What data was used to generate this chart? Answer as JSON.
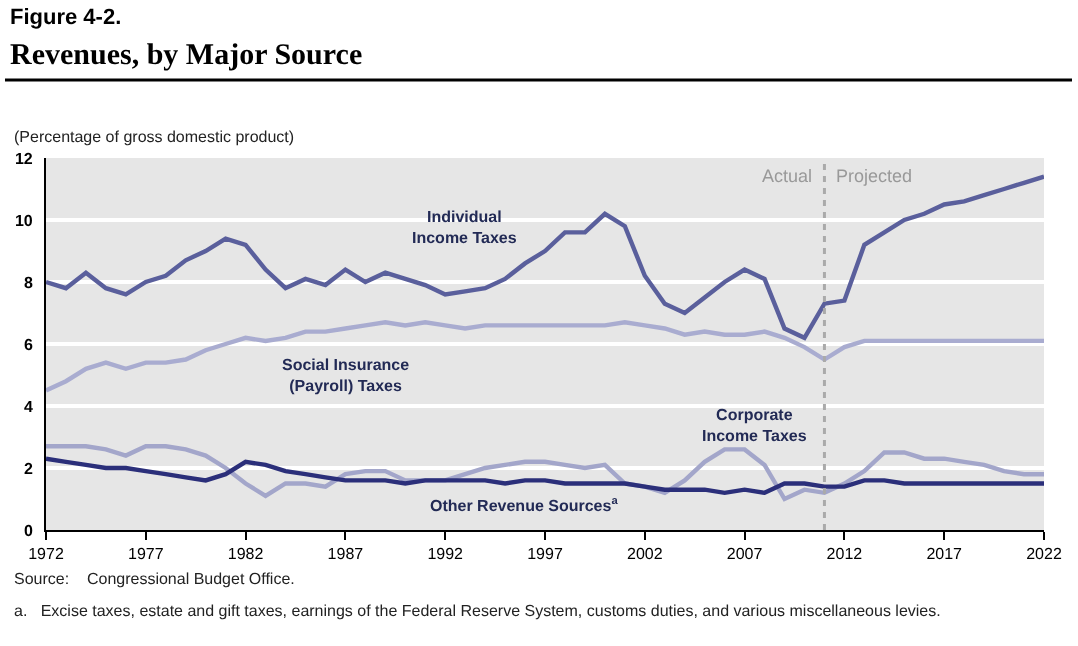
{
  "chart_data": {
    "type": "line",
    "title": "Revenues, by Major Source",
    "subtitle": "(Percentage of gross domestic product)",
    "x": [
      1972,
      1973,
      1974,
      1975,
      1976,
      1977,
      1978,
      1979,
      1980,
      1981,
      1982,
      1983,
      1984,
      1985,
      1986,
      1987,
      1988,
      1989,
      1990,
      1991,
      1992,
      1993,
      1994,
      1995,
      1996,
      1997,
      1998,
      1999,
      2000,
      2001,
      2002,
      2003,
      2004,
      2005,
      2006,
      2007,
      2008,
      2009,
      2010,
      2011,
      2012,
      2013,
      2014,
      2015,
      2016,
      2017,
      2018,
      2019,
      2020,
      2021,
      2022
    ],
    "series": [
      {
        "name": "Individual Income Taxes",
        "color": "#5a5f9c",
        "values": [
          8.0,
          7.8,
          8.3,
          7.8,
          7.6,
          8.0,
          8.2,
          8.7,
          9.0,
          9.4,
          9.2,
          8.4,
          7.8,
          8.1,
          7.9,
          8.4,
          8.0,
          8.3,
          8.1,
          7.9,
          7.6,
          7.7,
          7.8,
          8.1,
          8.6,
          9.0,
          9.6,
          9.6,
          10.2,
          9.8,
          8.2,
          7.3,
          7.0,
          7.5,
          8.0,
          8.4,
          8.1,
          6.5,
          6.2,
          7.3,
          7.4,
          9.2,
          9.6,
          10.0,
          10.2,
          10.5,
          10.6,
          10.8,
          11.0,
          11.2,
          11.4
        ]
      },
      {
        "name": "Social Insurance (Payroll) Taxes",
        "color": "#a9acd0",
        "values": [
          4.5,
          4.8,
          5.2,
          5.4,
          5.2,
          5.4,
          5.4,
          5.5,
          5.8,
          6.0,
          6.2,
          6.1,
          6.2,
          6.4,
          6.4,
          6.5,
          6.6,
          6.7,
          6.6,
          6.7,
          6.6,
          6.5,
          6.6,
          6.6,
          6.6,
          6.6,
          6.6,
          6.6,
          6.6,
          6.7,
          6.6,
          6.5,
          6.3,
          6.4,
          6.3,
          6.3,
          6.4,
          6.2,
          5.9,
          5.5,
          5.9,
          6.1,
          6.1,
          6.1,
          6.1,
          6.1,
          6.1,
          6.1,
          6.1,
          6.1,
          6.1
        ]
      },
      {
        "name": "Corporate Income Taxes",
        "color": "#a3a6ca",
        "values": [
          2.7,
          2.7,
          2.7,
          2.6,
          2.4,
          2.7,
          2.7,
          2.6,
          2.4,
          2.0,
          1.5,
          1.1,
          1.5,
          1.5,
          1.4,
          1.8,
          1.9,
          1.9,
          1.6,
          1.6,
          1.6,
          1.8,
          2.0,
          2.1,
          2.2,
          2.2,
          2.1,
          2.0,
          2.1,
          1.5,
          1.4,
          1.2,
          1.6,
          2.2,
          2.6,
          2.6,
          2.1,
          1.0,
          1.3,
          1.2,
          1.5,
          1.9,
          2.5,
          2.5,
          2.3,
          2.3,
          2.2,
          2.1,
          1.9,
          1.8,
          1.8
        ]
      },
      {
        "name": "Other Revenue Sources$^{a}$",
        "color": "#2b2f7a",
        "values": [
          2.3,
          2.2,
          2.1,
          2.0,
          2.0,
          1.9,
          1.8,
          1.7,
          1.6,
          1.8,
          2.2,
          2.1,
          1.9,
          1.8,
          1.7,
          1.6,
          1.6,
          1.6,
          1.5,
          1.6,
          1.6,
          1.6,
          1.6,
          1.5,
          1.6,
          1.6,
          1.5,
          1.5,
          1.5,
          1.5,
          1.4,
          1.3,
          1.3,
          1.3,
          1.2,
          1.3,
          1.2,
          1.5,
          1.5,
          1.4,
          1.4,
          1.6,
          1.6,
          1.5,
          1.5,
          1.5,
          1.5,
          1.5,
          1.5,
          1.5,
          1.5
        ]
      }
    ],
    "xlim": [
      1972,
      2022
    ],
    "xticks": [
      1972,
      1977,
      1982,
      1987,
      1992,
      1997,
      2002,
      2007,
      2012,
      2017,
      2022
    ],
    "ylim": [
      0,
      12
    ],
    "yticks": [
      0,
      2,
      4,
      6,
      8,
      10,
      12
    ],
    "grid": "y",
    "ref_lines": [
      {
        "axis": "x",
        "value": 2011,
        "color": "#aaaaaa",
        "line_style": "dotted"
      }
    ],
    "annotations": [
      "Figure 4-2.",
      {
        "text": "Actual",
        "x": 2011,
        "y": 12
      },
      {
        "text": "Projected",
        "x": 2011,
        "y": 12
      },
      "Source:    Congressional Budget Office.",
      "a.   Excise taxes, estate and gift taxes, earnings of the Federal Reserve System, customs duties, and various miscellaneous levies."
    ]
  }
}
